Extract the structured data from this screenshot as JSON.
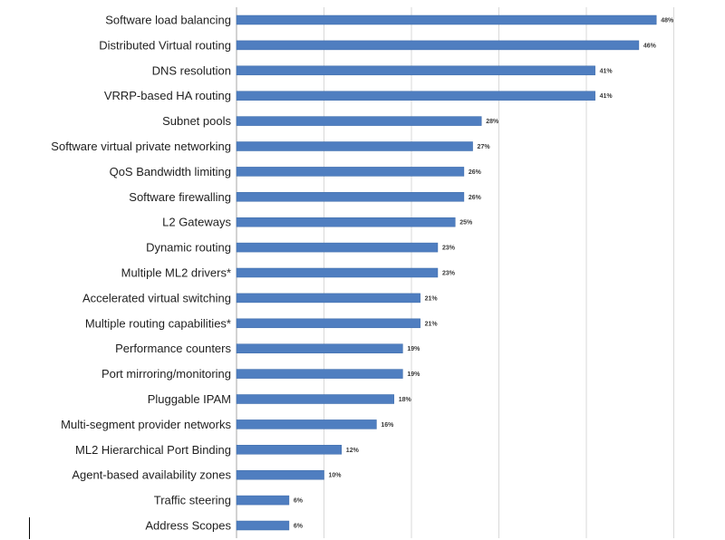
{
  "colors": {
    "bar": "#4f7ec0",
    "bar_stroke": "#3b6aa8",
    "grid": "#d9d9d9",
    "axis": "#a6a6a6"
  },
  "chart_data": {
    "type": "bar",
    "orientation": "horizontal",
    "title": "",
    "xlabel": "",
    "ylabel": "",
    "xlim": [
      0,
      50
    ],
    "grid": true,
    "categories": [
      "Software load balancing",
      "Distributed Virtual routing",
      "DNS resolution",
      "VRRP-based HA routing",
      "Subnet pools",
      "Software virtual private networking",
      "QoS Bandwidth limiting",
      "Software firewalling",
      "L2 Gateways",
      "Dynamic routing",
      "Multiple ML2 drivers*",
      "Accelerated virtual switching",
      "Multiple routing capabilities*",
      "Performance counters",
      "Port mirroring/monitoring",
      "Pluggable IPAM",
      "Multi-segment provider networks",
      "ML2 Hierarchical Port Binding",
      "Agent-based availability zones",
      "Traffic steering",
      "Address Scopes"
    ],
    "values": [
      48,
      46,
      41,
      41,
      28,
      27,
      26,
      26,
      25,
      23,
      23,
      21,
      21,
      19,
      19,
      18,
      16,
      12,
      10,
      6,
      6
    ],
    "data_labels": [
      "48%",
      "46%",
      "41%",
      "41%",
      "28%",
      "27%",
      "26%",
      "26%",
      "25%",
      "23%",
      "23%",
      "21%",
      "21%",
      "19%",
      "19%",
      "18%",
      "16%",
      "12%",
      "10%",
      "6%",
      "6%"
    ]
  }
}
